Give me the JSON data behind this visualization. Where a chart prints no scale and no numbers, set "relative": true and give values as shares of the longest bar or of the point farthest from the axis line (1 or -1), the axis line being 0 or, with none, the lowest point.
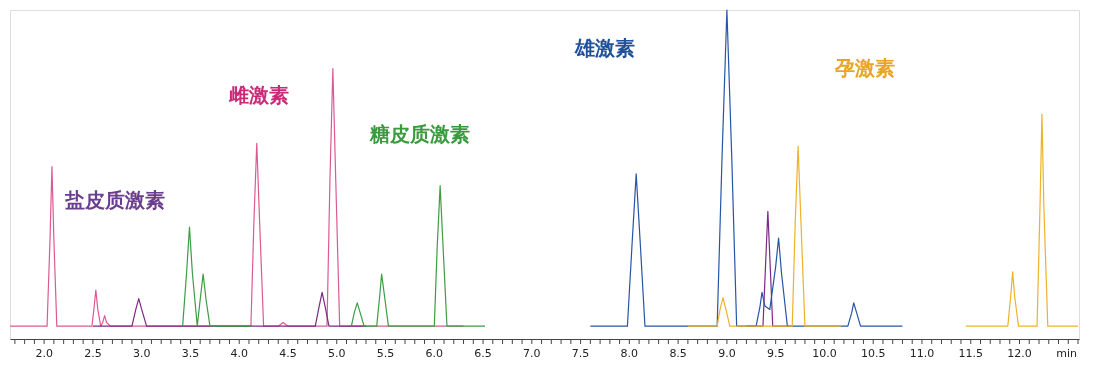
{
  "chart_data": {
    "type": "line",
    "relative": true,
    "xlabel": "min",
    "grid": false,
    "marker": "none",
    "line_style": "solid",
    "xlim": [
      1.65,
      12.61
    ],
    "xticks": [
      {
        "value": 1.7,
        "label": null
      },
      {
        "value": 1.8,
        "label": null
      },
      {
        "value": 1.9,
        "label": null
      },
      {
        "value": 2.0,
        "label": "2.0"
      },
      {
        "value": 2.1,
        "label": null
      },
      {
        "value": 2.2,
        "label": null
      },
      {
        "value": 2.3,
        "label": null
      },
      {
        "value": 2.4,
        "label": null
      },
      {
        "value": 2.5,
        "label": "2.5"
      },
      {
        "value": 2.6,
        "label": null
      },
      {
        "value": 2.7,
        "label": null
      },
      {
        "value": 2.8,
        "label": null
      },
      {
        "value": 2.9,
        "label": null
      },
      {
        "value": 3.0,
        "label": "3.0"
      },
      {
        "value": 3.1,
        "label": null
      },
      {
        "value": 3.2,
        "label": null
      },
      {
        "value": 3.3,
        "label": null
      },
      {
        "value": 3.4,
        "label": null
      },
      {
        "value": 3.5,
        "label": "3.5"
      },
      {
        "value": 3.6,
        "label": null
      },
      {
        "value": 3.7,
        "label": null
      },
      {
        "value": 3.8,
        "label": null
      },
      {
        "value": 3.9,
        "label": null
      },
      {
        "value": 4.0,
        "label": "4.0"
      },
      {
        "value": 4.1,
        "label": null
      },
      {
        "value": 4.2,
        "label": null
      },
      {
        "value": 4.3,
        "label": null
      },
      {
        "value": 4.4,
        "label": null
      },
      {
        "value": 4.5,
        "label": "4.5"
      },
      {
        "value": 4.6,
        "label": null
      },
      {
        "value": 4.7,
        "label": null
      },
      {
        "value": 4.8,
        "label": null
      },
      {
        "value": 4.9,
        "label": null
      },
      {
        "value": 5.0,
        "label": "5.0"
      },
      {
        "value": 5.1,
        "label": null
      },
      {
        "value": 5.2,
        "label": null
      },
      {
        "value": 5.3,
        "label": null
      },
      {
        "value": 5.4,
        "label": null
      },
      {
        "value": 5.5,
        "label": "5.5"
      },
      {
        "value": 5.6,
        "label": null
      },
      {
        "value": 5.7,
        "label": null
      },
      {
        "value": 5.8,
        "label": null
      },
      {
        "value": 5.9,
        "label": null
      },
      {
        "value": 6.0,
        "label": "6.0"
      },
      {
        "value": 6.1,
        "label": null
      },
      {
        "value": 6.2,
        "label": null
      },
      {
        "value": 6.3,
        "label": null
      },
      {
        "value": 6.4,
        "label": null
      },
      {
        "value": 6.5,
        "label": "6.5"
      },
      {
        "value": 6.6,
        "label": null
      },
      {
        "value": 6.7,
        "label": null
      },
      {
        "value": 6.8,
        "label": null
      },
      {
        "value": 6.9,
        "label": null
      },
      {
        "value": 7.0,
        "label": "7.0"
      },
      {
        "value": 7.1,
        "label": null
      },
      {
        "value": 7.2,
        "label": null
      },
      {
        "value": 7.3,
        "label": null
      },
      {
        "value": 7.4,
        "label": null
      },
      {
        "value": 7.5,
        "label": "7.5"
      },
      {
        "value": 7.6,
        "label": null
      },
      {
        "value": 7.7,
        "label": null
      },
      {
        "value": 7.8,
        "label": null
      },
      {
        "value": 7.9,
        "label": null
      },
      {
        "value": 8.0,
        "label": "8.0"
      },
      {
        "value": 8.1,
        "label": null
      },
      {
        "value": 8.2,
        "label": null
      },
      {
        "value": 8.3,
        "label": null
      },
      {
        "value": 8.4,
        "label": null
      },
      {
        "value": 8.5,
        "label": "8.5"
      },
      {
        "value": 8.6,
        "label": null
      },
      {
        "value": 8.7,
        "label": null
      },
      {
        "value": 8.8,
        "label": null
      },
      {
        "value": 8.9,
        "label": null
      },
      {
        "value": 9.0,
        "label": "9.0"
      },
      {
        "value": 9.1,
        "label": null
      },
      {
        "value": 9.2,
        "label": null
      },
      {
        "value": 9.3,
        "label": null
      },
      {
        "value": 9.4,
        "label": null
      },
      {
        "value": 9.5,
        "label": "9.5"
      },
      {
        "value": 9.6,
        "label": null
      },
      {
        "value": 9.7,
        "label": null
      },
      {
        "value": 9.8,
        "label": null
      },
      {
        "value": 9.9,
        "label": null
      },
      {
        "value": 10.0,
        "label": "10.0"
      },
      {
        "value": 10.1,
        "label": null
      },
      {
        "value": 10.2,
        "label": null
      },
      {
        "value": 10.3,
        "label": null
      },
      {
        "value": 10.4,
        "label": null
      },
      {
        "value": 10.5,
        "label": "10.5"
      },
      {
        "value": 10.6,
        "label": null
      },
      {
        "value": 10.7,
        "label": null
      },
      {
        "value": 10.8,
        "label": null
      },
      {
        "value": 10.9,
        "label": null
      },
      {
        "value": 11.0,
        "label": "11.0"
      },
      {
        "value": 11.1,
        "label": null
      },
      {
        "value": 11.2,
        "label": null
      },
      {
        "value": 11.3,
        "label": null
      },
      {
        "value": 11.4,
        "label": null
      },
      {
        "value": 11.5,
        "label": "11.5"
      },
      {
        "value": 11.6,
        "label": null
      },
      {
        "value": 11.7,
        "label": null
      },
      {
        "value": 11.8,
        "label": null
      },
      {
        "value": 11.9,
        "label": null
      },
      {
        "value": 12.0,
        "label": "12.0"
      },
      {
        "value": 12.1,
        "label": null
      },
      {
        "value": 12.2,
        "label": null
      },
      {
        "value": 12.3,
        "label": null
      },
      {
        "value": 12.4,
        "label": null
      },
      {
        "value": 12.5,
        "label": null
      },
      {
        "value": 12.6,
        "label": null
      }
    ],
    "series": [
      {
        "name": "雌激素",
        "color": "#dc5a94",
        "x": [
          1.65,
          2.03,
          2.06,
          2.08,
          2.1,
          2.13,
          2.49,
          2.51,
          2.53,
          2.55,
          2.58,
          2.6,
          2.62,
          2.64,
          2.68,
          4.12,
          4.15,
          4.18,
          4.21,
          4.25,
          4.4,
          4.45,
          4.5,
          4.9,
          4.93,
          4.96,
          4.99,
          5.03,
          6.3
        ],
        "values": [
          0.039,
          0.039,
          0.3,
          0.524,
          0.3,
          0.039,
          0.039,
          0.09,
          0.149,
          0.09,
          0.039,
          0.05,
          0.071,
          0.05,
          0.039,
          0.039,
          0.35,
          0.595,
          0.35,
          0.039,
          0.039,
          0.05,
          0.039,
          0.039,
          0.48,
          0.822,
          0.48,
          0.039,
          0.039
        ]
      },
      {
        "name": "盐皮质激素",
        "color": "#7a2a80",
        "x": [
          2.5,
          2.9,
          2.94,
          2.97,
          3.0,
          3.05,
          4.78,
          4.82,
          4.85,
          4.88,
          4.92,
          5.3,
          7.0,
          9.2,
          9.37,
          9.4,
          9.42,
          9.44,
          9.47,
          9.65
        ],
        "values": [
          0.039,
          0.039,
          0.09,
          0.123,
          0.09,
          0.039,
          0.039,
          0.1,
          0.142,
          0.1,
          0.039,
          0.039,
          null,
          0.039,
          0.039,
          0.25,
          0.388,
          0.25,
          0.039,
          0.039
        ]
      },
      {
        "name": "糖皮质激素",
        "color": "#3c9d45",
        "x": [
          3.42,
          3.46,
          3.49,
          3.52,
          3.57,
          3.6,
          3.63,
          3.66,
          3.7,
          4.13,
          5.0,
          5.15,
          5.18,
          5.21,
          5.24,
          5.28,
          5.41,
          5.44,
          5.46,
          5.49,
          5.53,
          6.0,
          6.03,
          6.06,
          6.09,
          6.13,
          6.52
        ],
        "values": [
          0.039,
          0.2,
          0.34,
          0.2,
          0.039,
          0.12,
          0.197,
          0.12,
          0.039,
          0.039,
          null,
          0.039,
          0.08,
          0.11,
          0.08,
          0.039,
          0.039,
          0.13,
          0.197,
          0.13,
          0.039,
          0.039,
          0.28,
          0.466,
          0.28,
          0.039,
          0.039
        ]
      },
      {
        "name": "雄激素",
        "color": "#2755a5",
        "x": [
          7.6,
          7.98,
          8.03,
          8.07,
          8.11,
          8.16,
          8.9,
          8.95,
          9.0,
          9.05,
          9.1,
          9.3,
          9.34,
          9.36,
          9.39,
          9.44,
          9.5,
          9.53,
          9.56,
          9.62,
          10.24,
          10.28,
          10.3,
          10.33,
          10.37,
          10.8
        ],
        "values": [
          0.039,
          0.039,
          0.3,
          0.502,
          0.3,
          0.039,
          0.039,
          0.55,
          1,
          0.55,
          0.039,
          0.039,
          0.1,
          0.142,
          0.1,
          0.09,
          0.22,
          0.307,
          0.2,
          0.039,
          0.039,
          0.08,
          0.11,
          0.08,
          0.039,
          0.039
        ]
      },
      {
        "name": "孕激素",
        "color": "#eeb22a",
        "x": [
          8.6,
          8.9,
          8.93,
          8.96,
          8.99,
          9.03,
          9.67,
          9.7,
          9.73,
          9.76,
          9.8,
          10.17,
          11.0,
          11.45,
          11.88,
          11.91,
          11.93,
          11.95,
          11.99,
          12.18,
          12.21,
          12.23,
          12.25,
          12.29,
          12.6
        ],
        "values": [
          0.039,
          0.039,
          0.09,
          0.126,
          0.09,
          0.039,
          0.039,
          0.35,
          0.586,
          0.35,
          0.039,
          0.039,
          null,
          0.039,
          0.039,
          0.13,
          0.204,
          0.13,
          0.039,
          0.039,
          0.4,
          0.683,
          0.4,
          0.039,
          0.039
        ]
      }
    ]
  }
}
